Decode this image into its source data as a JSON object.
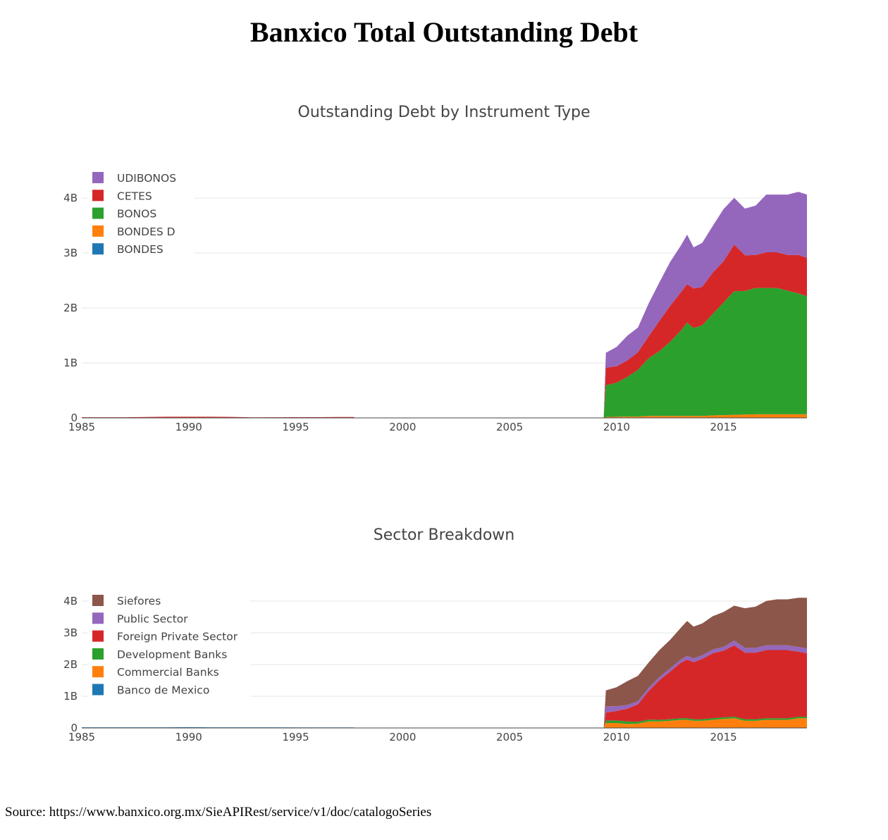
{
  "page": {
    "title": "Banxico Total Outstanding Debt",
    "source": "Source: https://www.banxico.org.mx/SieAPIRest/service/v1/doc/catalogoSeries"
  },
  "chart_data": [
    {
      "type": "area",
      "stacked": true,
      "title": "Outstanding Debt by Instrument Type",
      "xlabel": "",
      "ylabel": "",
      "xlim": [
        1985,
        2018.9
      ],
      "ylim": [
        0,
        4.4
      ],
      "x_ticks": [
        1985,
        1990,
        1995,
        2000,
        2005,
        2010,
        2015
      ],
      "x_tick_labels": [
        "1985",
        "1990",
        "1995",
        "2000",
        "2005",
        "2010",
        "2015"
      ],
      "y_ticks": [
        0,
        1,
        2,
        3,
        4
      ],
      "y_tick_labels": [
        "0",
        "1B",
        "2B",
        "3B",
        "4B"
      ],
      "grid": true,
      "legend_position": "top-left",
      "legend_order": [
        "UDIBONOS",
        "CETES",
        "BONOS",
        "BONDES D",
        "BONDES"
      ],
      "x": [
        1985,
        1986,
        1987,
        1988,
        1989,
        1990,
        1991,
        1992,
        1993,
        1994,
        1995,
        1996,
        1997,
        1997.7,
        1997.8,
        2009.4,
        2009.5,
        2010,
        2010.5,
        2011,
        2011.5,
        2012,
        2012.5,
        2013,
        2013.3,
        2013.6,
        2014,
        2014.5,
        2015,
        2015.5,
        2016,
        2016.5,
        2017,
        2017.5,
        2018,
        2018.5,
        2018.9
      ],
      "series": [
        {
          "name": "BONDES",
          "color": "#1f77b4",
          "values": [
            0,
            0,
            0,
            0,
            0,
            0,
            0,
            0,
            0,
            0.003,
            0.003,
            0.003,
            0.005,
            0.005,
            0,
            0,
            0.005,
            0.005,
            0.005,
            0.005,
            0.005,
            0.005,
            0.005,
            0.005,
            0.005,
            0.005,
            0.005,
            0.005,
            0.005,
            0.005,
            0.005,
            0.005,
            0.005,
            0.005,
            0.005,
            0.005,
            0.005
          ]
        },
        {
          "name": "BONDES D",
          "color": "#ff7f0e",
          "values": [
            0,
            0,
            0,
            0,
            0,
            0,
            0,
            0,
            0,
            0,
            0,
            0,
            0,
            0,
            0,
            0,
            0.01,
            0.015,
            0.02,
            0.02,
            0.03,
            0.03,
            0.03,
            0.03,
            0.03,
            0.03,
            0.03,
            0.04,
            0.045,
            0.05,
            0.055,
            0.06,
            0.06,
            0.06,
            0.06,
            0.06,
            0.06
          ]
        },
        {
          "name": "BONOS",
          "color": "#2ca02c",
          "values": [
            0,
            0,
            0,
            0,
            0,
            0,
            0,
            0,
            0,
            0,
            0,
            0,
            0,
            0,
            0,
            0,
            0.58,
            0.62,
            0.72,
            0.85,
            1.05,
            1.18,
            1.35,
            1.55,
            1.7,
            1.6,
            1.65,
            1.85,
            2.05,
            2.25,
            2.25,
            2.3,
            2.3,
            2.3,
            2.25,
            2.2,
            2.15
          ]
        },
        {
          "name": "CETES",
          "color": "#d62728",
          "values": [
            0.012,
            0.012,
            0.012,
            0.016,
            0.02,
            0.02,
            0.02,
            0.018,
            0.01,
            0.008,
            0.01,
            0.01,
            0.01,
            0.01,
            0,
            0,
            0.32,
            0.3,
            0.3,
            0.32,
            0.4,
            0.55,
            0.65,
            0.7,
            0.7,
            0.72,
            0.7,
            0.75,
            0.75,
            0.85,
            0.65,
            0.6,
            0.65,
            0.65,
            0.65,
            0.7,
            0.7
          ]
        },
        {
          "name": "UDIBONOS",
          "color": "#9467bd",
          "values": [
            0,
            0,
            0,
            0,
            0,
            0,
            0,
            0,
            0,
            0,
            0,
            0,
            0,
            0,
            0,
            0,
            0.27,
            0.35,
            0.45,
            0.45,
            0.6,
            0.7,
            0.8,
            0.85,
            0.9,
            0.75,
            0.8,
            0.85,
            0.95,
            0.85,
            0.85,
            0.9,
            1.05,
            1.05,
            1.1,
            1.15,
            1.15
          ]
        }
      ]
    },
    {
      "type": "area",
      "stacked": true,
      "title": "Sector Breakdown",
      "xlabel": "",
      "ylabel": "",
      "xlim": [
        1985,
        2018.9
      ],
      "ylim": [
        0,
        4.4
      ],
      "x_ticks": [
        1985,
        1990,
        1995,
        2000,
        2005,
        2010,
        2015
      ],
      "x_tick_labels": [
        "1985",
        "1990",
        "1995",
        "2000",
        "2005",
        "2010",
        "2015"
      ],
      "y_ticks": [
        0,
        1,
        2,
        3,
        4
      ],
      "y_tick_labels": [
        "0",
        "1B",
        "2B",
        "3B",
        "4B"
      ],
      "grid": true,
      "legend_position": "top-left",
      "legend_order": [
        "Siefores",
        "Public Sector",
        "Foreign Private Sector",
        "Development Banks",
        "Commercial Banks",
        "Banco de Mexico"
      ],
      "x": [
        1985,
        1986,
        1987,
        1988,
        1989,
        1990,
        1991,
        1992,
        1993,
        1994,
        1995,
        1996,
        1997,
        1997.7,
        1997.8,
        2009.4,
        2009.5,
        2010,
        2010.5,
        2011,
        2011.5,
        2012,
        2012.5,
        2013,
        2013.3,
        2013.6,
        2014,
        2014.5,
        2015,
        2015.5,
        2016,
        2016.5,
        2017,
        2017.5,
        2018,
        2018.5,
        2018.9
      ],
      "series": [
        {
          "name": "Banco de Mexico",
          "color": "#1f77b4",
          "values": [
            0.02,
            0.02,
            0.02,
            0.02,
            0.02,
            0.025,
            0.02,
            0.02,
            0.02,
            0.02,
            0.015,
            0.015,
            0.015,
            0.015,
            0,
            0,
            0.005,
            0.005,
            0.005,
            0.005,
            0.005,
            0.005,
            0.005,
            0.005,
            0.005,
            0.005,
            0.005,
            0.005,
            0.005,
            0.005,
            0.005,
            0.005,
            0.005,
            0.005,
            0.005,
            0.005,
            0.005
          ]
        },
        {
          "name": "Commercial Banks",
          "color": "#ff7f0e",
          "values": [
            0,
            0,
            0,
            0,
            0,
            0,
            0,
            0,
            0,
            0,
            0,
            0,
            0,
            0,
            0,
            0,
            0.15,
            0.15,
            0.12,
            0.13,
            0.2,
            0.2,
            0.22,
            0.25,
            0.25,
            0.22,
            0.22,
            0.25,
            0.28,
            0.3,
            0.22,
            0.22,
            0.25,
            0.25,
            0.25,
            0.3,
            0.3
          ]
        },
        {
          "name": "Development Banks",
          "color": "#2ca02c",
          "values": [
            0,
            0,
            0,
            0,
            0,
            0,
            0,
            0,
            0,
            0,
            0,
            0,
            0,
            0,
            0,
            0,
            0.08,
            0.08,
            0.08,
            0.06,
            0.06,
            0.05,
            0.05,
            0.05,
            0.05,
            0.05,
            0.05,
            0.05,
            0.05,
            0.05,
            0.05,
            0.05,
            0.05,
            0.05,
            0.05,
            0.05,
            0.05
          ]
        },
        {
          "name": "Foreign Private Sector",
          "color": "#d62728",
          "values": [
            0,
            0,
            0,
            0,
            0,
            0,
            0,
            0,
            0,
            0,
            0,
            0,
            0,
            0,
            0,
            0,
            0.25,
            0.3,
            0.4,
            0.55,
            0.9,
            1.25,
            1.5,
            1.75,
            1.85,
            1.8,
            1.9,
            2.05,
            2.1,
            2.25,
            2.1,
            2.1,
            2.15,
            2.15,
            2.15,
            2.05,
            2.0
          ]
        },
        {
          "name": "Public Sector",
          "color": "#9467bd",
          "values": [
            0,
            0,
            0,
            0,
            0,
            0,
            0,
            0,
            0,
            0,
            0,
            0,
            0,
            0,
            0,
            0,
            0.2,
            0.15,
            0.12,
            0.1,
            0.1,
            0.1,
            0.1,
            0.1,
            0.12,
            0.12,
            0.12,
            0.12,
            0.12,
            0.15,
            0.15,
            0.15,
            0.15,
            0.15,
            0.15,
            0.15,
            0.15
          ]
        },
        {
          "name": "Siefores",
          "color": "#8c564b",
          "values": [
            0,
            0,
            0,
            0,
            0,
            0,
            0,
            0,
            0,
            0,
            0,
            0,
            0,
            0,
            0,
            0,
            0.5,
            0.6,
            0.75,
            0.8,
            0.8,
            0.85,
            0.9,
            1.0,
            1.1,
            1.0,
            1.0,
            1.05,
            1.1,
            1.1,
            1.25,
            1.3,
            1.4,
            1.45,
            1.45,
            1.55,
            1.6
          ]
        }
      ]
    }
  ]
}
